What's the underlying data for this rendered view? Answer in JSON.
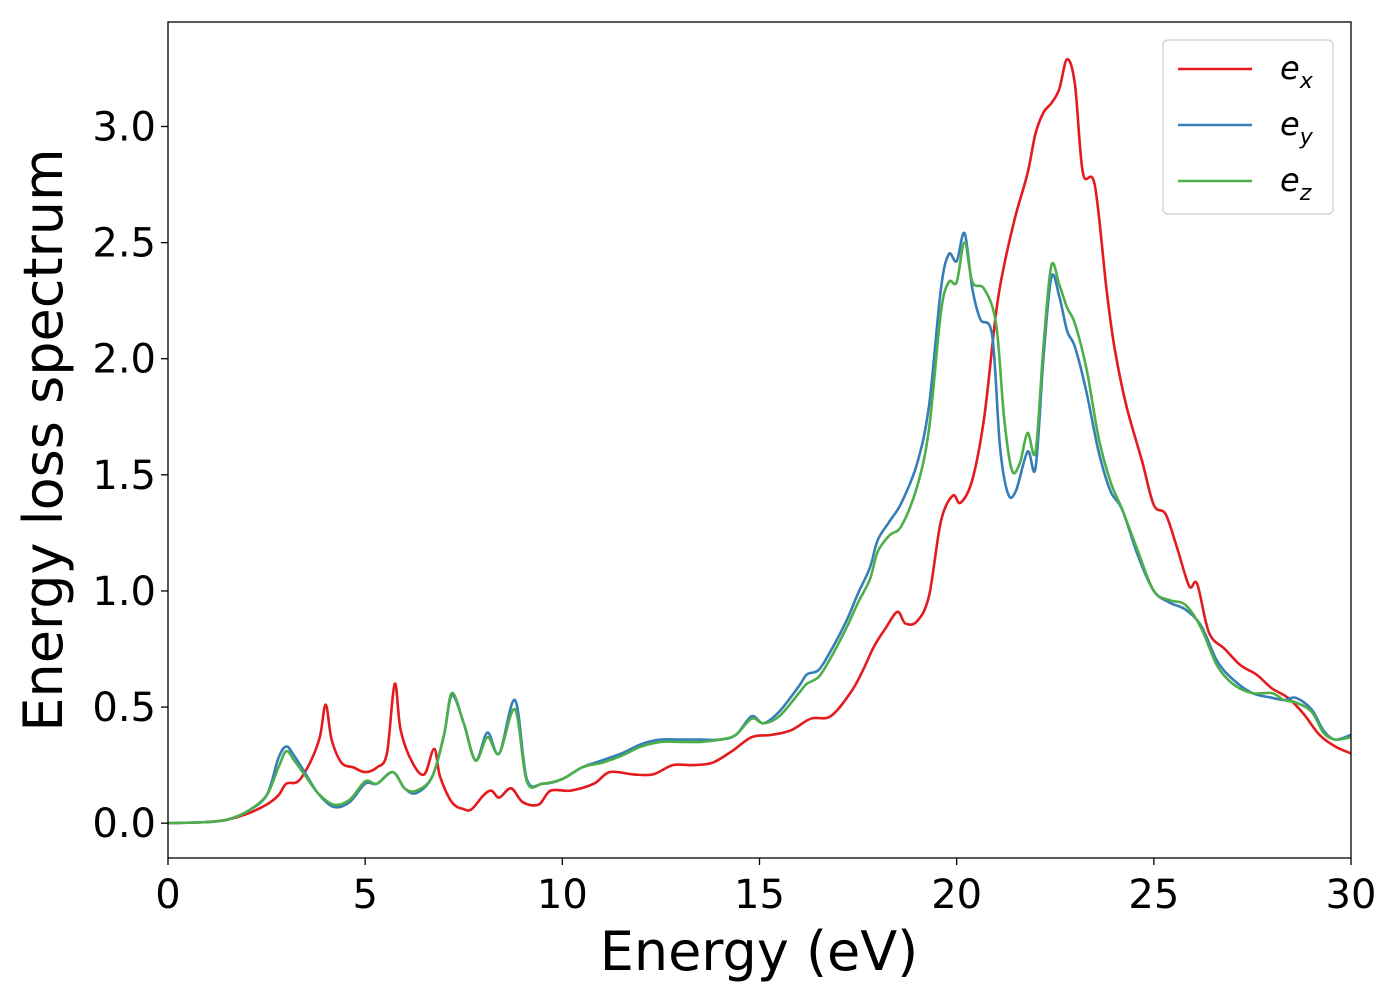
{
  "chart_data": {
    "type": "line",
    "title": "",
    "xlabel": "Energy (eV)",
    "ylabel": "Energy loss spectrum",
    "xlim": [
      0,
      30
    ],
    "ylim": [
      -0.15,
      3.45
    ],
    "xticks": [
      0,
      5,
      10,
      15,
      20,
      25,
      30
    ],
    "xtick_labels": [
      "0",
      "5",
      "10",
      "15",
      "20",
      "25",
      "30"
    ],
    "yticks": [
      0.0,
      0.5,
      1.0,
      1.5,
      2.0,
      2.5,
      3.0
    ],
    "ytick_labels": [
      "0.0",
      "0.5",
      "1.0",
      "1.5",
      "2.0",
      "2.5",
      "3.0"
    ],
    "grid": false,
    "legend_position": "top-right",
    "series": [
      {
        "name": "e",
        "subscript": "x",
        "color": "#e41a1c",
        "points": [
          [
            0,
            0
          ],
          [
            1,
            0.005
          ],
          [
            1.5,
            0.015
          ],
          [
            2,
            0.04
          ],
          [
            2.5,
            0.08
          ],
          [
            2.8,
            0.12
          ],
          [
            3,
            0.17
          ],
          [
            3.3,
            0.18
          ],
          [
            3.6,
            0.26
          ],
          [
            3.85,
            0.37
          ],
          [
            4,
            0.51
          ],
          [
            4.15,
            0.36
          ],
          [
            4.4,
            0.26
          ],
          [
            4.7,
            0.24
          ],
          [
            5,
            0.22
          ],
          [
            5.3,
            0.24
          ],
          [
            5.55,
            0.3
          ],
          [
            5.75,
            0.6
          ],
          [
            5.9,
            0.4
          ],
          [
            6.2,
            0.26
          ],
          [
            6.5,
            0.21
          ],
          [
            6.75,
            0.32
          ],
          [
            6.9,
            0.2
          ],
          [
            7.2,
            0.09
          ],
          [
            7.5,
            0.06
          ],
          [
            7.7,
            0.06
          ],
          [
            8,
            0.12
          ],
          [
            8.2,
            0.14
          ],
          [
            8.4,
            0.11
          ],
          [
            8.7,
            0.15
          ],
          [
            9,
            0.09
          ],
          [
            9.4,
            0.08
          ],
          [
            9.7,
            0.14
          ],
          [
            10.2,
            0.14
          ],
          [
            10.8,
            0.17
          ],
          [
            11.2,
            0.22
          ],
          [
            11.8,
            0.21
          ],
          [
            12.3,
            0.21
          ],
          [
            12.8,
            0.25
          ],
          [
            13.3,
            0.25
          ],
          [
            13.8,
            0.26
          ],
          [
            14.3,
            0.31
          ],
          [
            14.8,
            0.37
          ],
          [
            15.3,
            0.38
          ],
          [
            15.8,
            0.4
          ],
          [
            16.3,
            0.45
          ],
          [
            16.8,
            0.46
          ],
          [
            17.3,
            0.56
          ],
          [
            17.6,
            0.65
          ],
          [
            17.9,
            0.76
          ],
          [
            18.2,
            0.84
          ],
          [
            18.5,
            0.91
          ],
          [
            18.7,
            0.86
          ],
          [
            19,
            0.87
          ],
          [
            19.3,
            0.98
          ],
          [
            19.6,
            1.3
          ],
          [
            19.9,
            1.41
          ],
          [
            20.1,
            1.38
          ],
          [
            20.4,
            1.48
          ],
          [
            20.7,
            1.75
          ],
          [
            21,
            2.2
          ],
          [
            21.2,
            2.4
          ],
          [
            21.5,
            2.62
          ],
          [
            21.8,
            2.8
          ],
          [
            22,
            2.97
          ],
          [
            22.2,
            3.06
          ],
          [
            22.4,
            3.1
          ],
          [
            22.6,
            3.16
          ],
          [
            22.8,
            3.29
          ],
          [
            23,
            3.18
          ],
          [
            23.2,
            2.8
          ],
          [
            23.5,
            2.75
          ],
          [
            23.8,
            2.3
          ],
          [
            24,
            2.05
          ],
          [
            24.3,
            1.8
          ],
          [
            24.7,
            1.56
          ],
          [
            25,
            1.37
          ],
          [
            25.3,
            1.33
          ],
          [
            25.6,
            1.18
          ],
          [
            25.9,
            1.02
          ],
          [
            26.1,
            1.03
          ],
          [
            26.4,
            0.82
          ],
          [
            26.8,
            0.75
          ],
          [
            27.2,
            0.68
          ],
          [
            27.6,
            0.64
          ],
          [
            28,
            0.58
          ],
          [
            28.4,
            0.54
          ],
          [
            28.8,
            0.47
          ],
          [
            29.2,
            0.38
          ],
          [
            29.6,
            0.33
          ],
          [
            30,
            0.3
          ]
        ]
      },
      {
        "name": "e",
        "subscript": "y",
        "color": "#377eb8",
        "points": [
          [
            0,
            0
          ],
          [
            1,
            0.005
          ],
          [
            1.5,
            0.015
          ],
          [
            2,
            0.05
          ],
          [
            2.5,
            0.12
          ],
          [
            2.8,
            0.28
          ],
          [
            3,
            0.33
          ],
          [
            3.2,
            0.29
          ],
          [
            3.5,
            0.21
          ],
          [
            3.8,
            0.13
          ],
          [
            4.2,
            0.07
          ],
          [
            4.6,
            0.09
          ],
          [
            5,
            0.17
          ],
          [
            5.3,
            0.17
          ],
          [
            5.7,
            0.22
          ],
          [
            6,
            0.15
          ],
          [
            6.3,
            0.13
          ],
          [
            6.7,
            0.2
          ],
          [
            7,
            0.38
          ],
          [
            7.2,
            0.55
          ],
          [
            7.5,
            0.43
          ],
          [
            7.8,
            0.27
          ],
          [
            8.1,
            0.39
          ],
          [
            8.4,
            0.3
          ],
          [
            8.8,
            0.53
          ],
          [
            9.1,
            0.19
          ],
          [
            9.5,
            0.17
          ],
          [
            10,
            0.19
          ],
          [
            10.5,
            0.24
          ],
          [
            11,
            0.27
          ],
          [
            11.5,
            0.3
          ],
          [
            12,
            0.34
          ],
          [
            12.5,
            0.36
          ],
          [
            13,
            0.36
          ],
          [
            13.5,
            0.36
          ],
          [
            14,
            0.36
          ],
          [
            14.4,
            0.38
          ],
          [
            14.8,
            0.46
          ],
          [
            15.1,
            0.43
          ],
          [
            15.5,
            0.48
          ],
          [
            16,
            0.59
          ],
          [
            16.2,
            0.64
          ],
          [
            16.5,
            0.66
          ],
          [
            16.8,
            0.74
          ],
          [
            17.2,
            0.87
          ],
          [
            17.5,
            0.99
          ],
          [
            17.8,
            1.1
          ],
          [
            18,
            1.22
          ],
          [
            18.3,
            1.3
          ],
          [
            18.6,
            1.38
          ],
          [
            19,
            1.55
          ],
          [
            19.3,
            1.8
          ],
          [
            19.6,
            2.3
          ],
          [
            19.8,
            2.45
          ],
          [
            20,
            2.42
          ],
          [
            20.2,
            2.54
          ],
          [
            20.4,
            2.3
          ],
          [
            20.6,
            2.17
          ],
          [
            20.9,
            2.1
          ],
          [
            21.1,
            1.62
          ],
          [
            21.3,
            1.42
          ],
          [
            21.5,
            1.43
          ],
          [
            21.8,
            1.6
          ],
          [
            22,
            1.53
          ],
          [
            22.2,
            2
          ],
          [
            22.4,
            2.35
          ],
          [
            22.6,
            2.27
          ],
          [
            22.8,
            2.12
          ],
          [
            23,
            2.05
          ],
          [
            23.3,
            1.85
          ],
          [
            23.6,
            1.6
          ],
          [
            23.9,
            1.43
          ],
          [
            24.2,
            1.35
          ],
          [
            24.6,
            1.15
          ],
          [
            25,
            1
          ],
          [
            25.4,
            0.95
          ],
          [
            25.8,
            0.92
          ],
          [
            26.2,
            0.85
          ],
          [
            26.6,
            0.7
          ],
          [
            27,
            0.62
          ],
          [
            27.5,
            0.56
          ],
          [
            28,
            0.54
          ],
          [
            28.3,
            0.53
          ],
          [
            28.6,
            0.54
          ],
          [
            29,
            0.49
          ],
          [
            29.3,
            0.4
          ],
          [
            29.6,
            0.36
          ],
          [
            30,
            0.38
          ]
        ]
      },
      {
        "name": "e",
        "subscript": "z",
        "color": "#4daf4a",
        "points": [
          [
            0,
            0
          ],
          [
            1,
            0.005
          ],
          [
            1.5,
            0.015
          ],
          [
            2,
            0.05
          ],
          [
            2.5,
            0.12
          ],
          [
            2.8,
            0.24
          ],
          [
            3,
            0.31
          ],
          [
            3.2,
            0.27
          ],
          [
            3.5,
            0.2
          ],
          [
            3.8,
            0.13
          ],
          [
            4.2,
            0.08
          ],
          [
            4.6,
            0.1
          ],
          [
            5,
            0.18
          ],
          [
            5.3,
            0.17
          ],
          [
            5.7,
            0.22
          ],
          [
            6,
            0.15
          ],
          [
            6.3,
            0.14
          ],
          [
            6.7,
            0.2
          ],
          [
            7,
            0.38
          ],
          [
            7.2,
            0.56
          ],
          [
            7.5,
            0.43
          ],
          [
            7.8,
            0.27
          ],
          [
            8.1,
            0.37
          ],
          [
            8.4,
            0.3
          ],
          [
            8.8,
            0.49
          ],
          [
            9.1,
            0.18
          ],
          [
            9.5,
            0.17
          ],
          [
            10,
            0.19
          ],
          [
            10.5,
            0.24
          ],
          [
            11,
            0.26
          ],
          [
            11.5,
            0.29
          ],
          [
            12,
            0.33
          ],
          [
            12.5,
            0.35
          ],
          [
            13,
            0.35
          ],
          [
            13.5,
            0.35
          ],
          [
            14,
            0.36
          ],
          [
            14.4,
            0.38
          ],
          [
            14.8,
            0.45
          ],
          [
            15.1,
            0.43
          ],
          [
            15.5,
            0.46
          ],
          [
            16,
            0.56
          ],
          [
            16.2,
            0.6
          ],
          [
            16.5,
            0.63
          ],
          [
            16.8,
            0.71
          ],
          [
            17.2,
            0.84
          ],
          [
            17.5,
            0.95
          ],
          [
            17.8,
            1.05
          ],
          [
            18,
            1.17
          ],
          [
            18.3,
            1.24
          ],
          [
            18.6,
            1.28
          ],
          [
            19,
            1.45
          ],
          [
            19.3,
            1.7
          ],
          [
            19.6,
            2.2
          ],
          [
            19.8,
            2.33
          ],
          [
            20,
            2.33
          ],
          [
            20.2,
            2.5
          ],
          [
            20.4,
            2.33
          ],
          [
            20.7,
            2.3
          ],
          [
            21,
            2.15
          ],
          [
            21.2,
            1.75
          ],
          [
            21.4,
            1.52
          ],
          [
            21.6,
            1.55
          ],
          [
            21.8,
            1.68
          ],
          [
            22,
            1.6
          ],
          [
            22.2,
            2.05
          ],
          [
            22.4,
            2.4
          ],
          [
            22.6,
            2.32
          ],
          [
            22.8,
            2.22
          ],
          [
            23,
            2.15
          ],
          [
            23.3,
            1.95
          ],
          [
            23.6,
            1.66
          ],
          [
            23.9,
            1.47
          ],
          [
            24.2,
            1.35
          ],
          [
            24.6,
            1.17
          ],
          [
            25,
            1
          ],
          [
            25.4,
            0.96
          ],
          [
            25.8,
            0.94
          ],
          [
            26.2,
            0.84
          ],
          [
            26.6,
            0.68
          ],
          [
            27,
            0.6
          ],
          [
            27.5,
            0.56
          ],
          [
            28,
            0.56
          ],
          [
            28.3,
            0.53
          ],
          [
            28.6,
            0.52
          ],
          [
            29,
            0.48
          ],
          [
            29.3,
            0.39
          ],
          [
            29.6,
            0.36
          ],
          [
            30,
            0.37
          ]
        ]
      }
    ]
  }
}
